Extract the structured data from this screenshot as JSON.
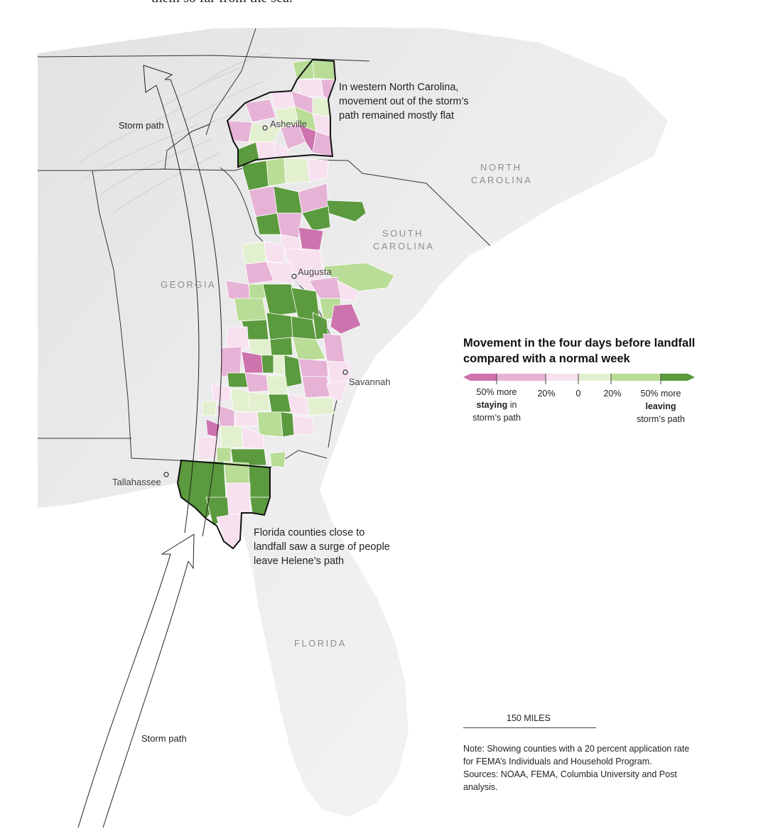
{
  "intro_fragment": "them so far from the sea.",
  "states": {
    "north_carolina": "NORTH CAROLINA",
    "north_carolina_line1": "NORTH",
    "north_carolina_line2": "CAROLINA",
    "south_carolina_line1": "SOUTH",
    "south_carolina_line2": "CAROLINA",
    "georgia": "GEORGIA",
    "florida": "FLORIDA"
  },
  "cities": {
    "asheville": "Asheville",
    "augusta": "Augusta",
    "savannah": "Savannah",
    "tallahassee": "Tallahassee"
  },
  "storm_path_labels": [
    "Storm path",
    "Storm path"
  ],
  "annotations": {
    "north_carolina": "In western North Carolina, movement out of the storm’s path remained mostly flat",
    "florida": "Florida counties close to landfall saw a surge of people leave Helene’s path"
  },
  "legend": {
    "title": "Movement in the four days before landfall compared with a normal week",
    "ticks": [
      "20%",
      "0",
      "20%"
    ],
    "left_line1": "50% more",
    "left_bold": "staying",
    "left_rest": " in",
    "left_line3": "storm’s path",
    "right_line1": "50% more",
    "right_bold": "leaving",
    "right_line3": "storm’s path",
    "colors": [
      "#cd73ad",
      "#e6b3d6",
      "#f7e1ef",
      "#e3f0cf",
      "#b9dc96",
      "#5b9a3e"
    ]
  },
  "scale": {
    "label": "150 MILES"
  },
  "note": {
    "line1": "Note: Showing counties with a 20 percent application rate for FEMA’s Individuals and Household Program.",
    "line2": "Sources: NOAA, FEMA, Columbia University and Post analysis."
  }
}
